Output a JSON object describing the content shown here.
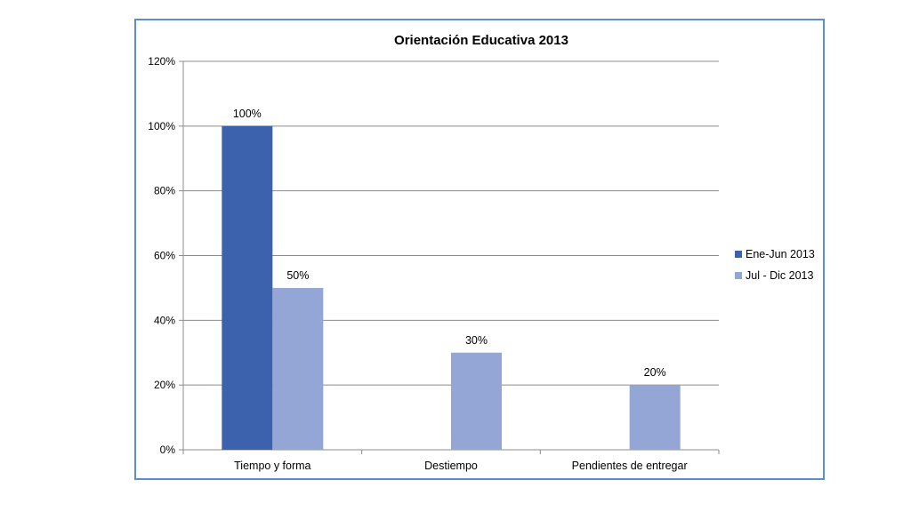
{
  "chart_data": {
    "type": "bar",
    "title": "Orientación Educativa 2013",
    "categories": [
      "Tiempo y forma",
      "Destiempo",
      "Pendientes de entregar"
    ],
    "series": [
      {
        "name": "Ene-Jun 2013",
        "values": [
          1.0,
          null,
          null
        ],
        "labels": [
          "100%",
          "",
          ""
        ],
        "color": "#3c62ad"
      },
      {
        "name": "Jul - Dic 2013",
        "values": [
          0.5,
          0.3,
          0.2
        ],
        "labels": [
          "50%",
          "30%",
          "20%"
        ],
        "color": "#93a6d6"
      }
    ],
    "ylim": [
      0,
      1.2
    ],
    "yticks": [
      "0%",
      "20%",
      "40%",
      "60%",
      "80%",
      "100%",
      "120%"
    ],
    "grid": true,
    "legend_position": "right"
  },
  "colors": {
    "frame": "#5b8fc9",
    "grid": "#8c8c8c"
  }
}
